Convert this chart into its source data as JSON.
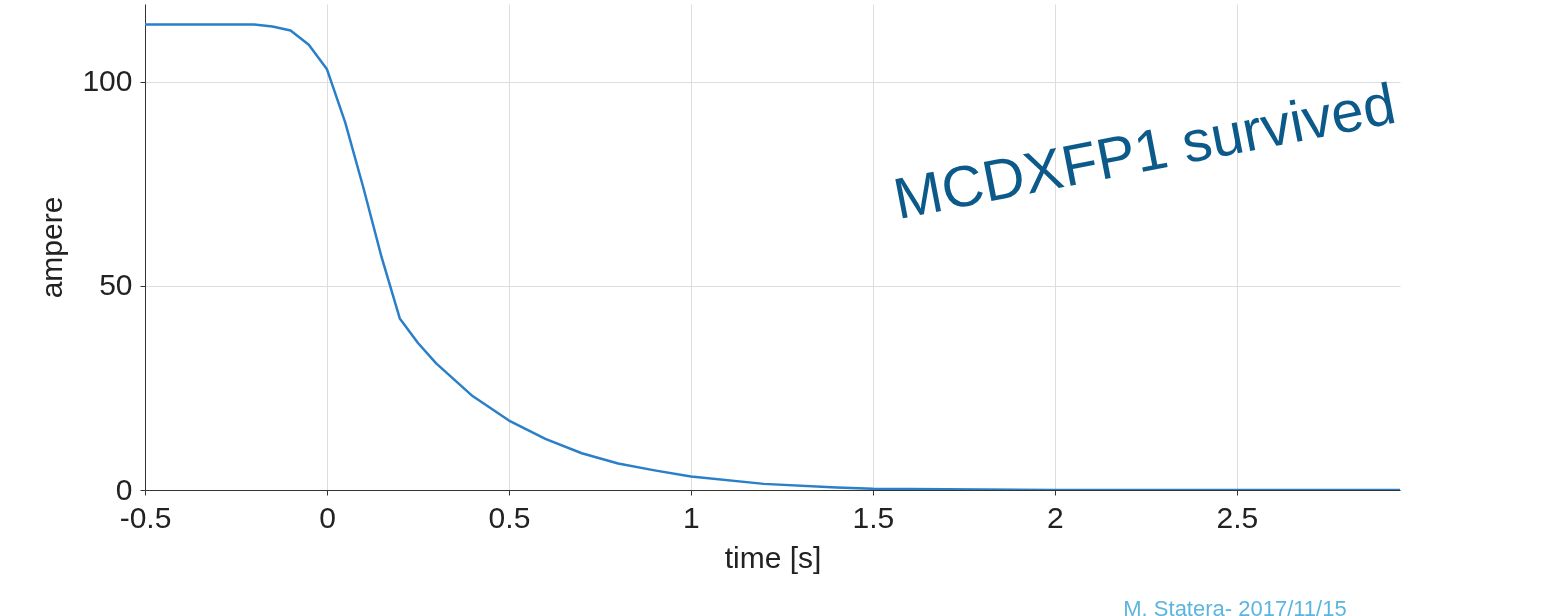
{
  "chart_data": {
    "type": "line",
    "xlabel": "time [s]",
    "ylabel": "ampere",
    "annotations": [
      "MCDXFP1 survived",
      "M. Statera- 2017/11/15"
    ],
    "x": [
      -0.5,
      -0.3,
      -0.2,
      -0.15,
      -0.1,
      -0.05,
      0,
      0.05,
      0.1,
      0.15,
      0.2,
      0.25,
      0.3,
      0.4,
      0.5,
      0.6,
      0.7,
      0.8,
      0.9,
      1.0,
      1.2,
      1.4,
      1.5,
      2.0,
      2.5,
      2.948
    ],
    "series": [
      {
        "color": "#2a7fc9",
        "values": [
          114,
          114,
          114,
          113.5,
          112.5,
          109,
          103,
          90,
          74,
          57,
          42,
          36,
          31,
          23,
          17,
          12.5,
          9,
          6.5,
          4.8,
          3.3,
          1.5,
          0.6,
          0.3,
          0,
          0,
          0
        ]
      }
    ],
    "xlim": [
      -0.5,
      2.948
    ],
    "xticks": [
      -0.5,
      0,
      0.5,
      1,
      1.5,
      2,
      2.5
    ],
    "ylim": [
      0,
      119
    ],
    "yticks": [
      0,
      50,
      100
    ],
    "grid": true
  }
}
